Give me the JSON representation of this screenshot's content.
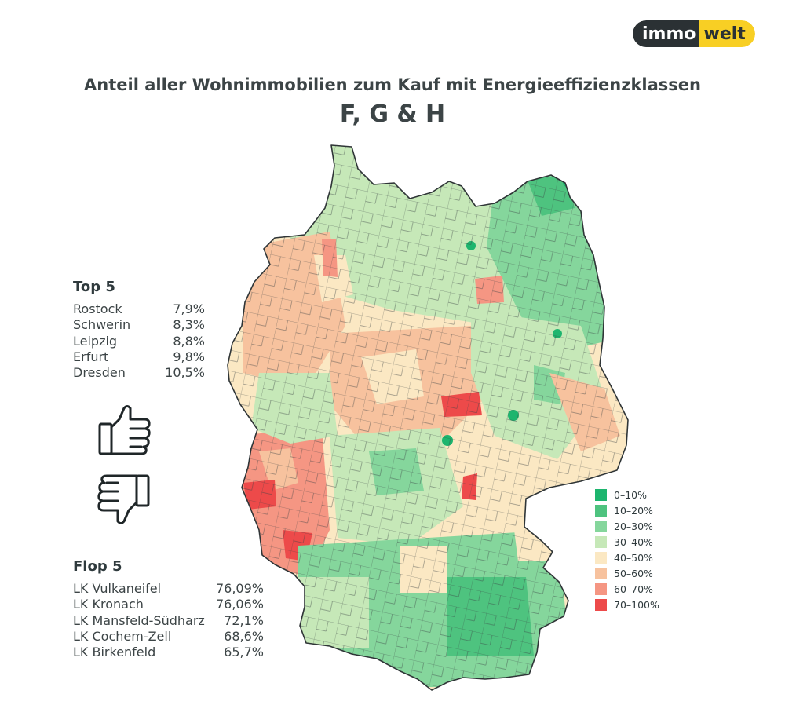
{
  "brand": {
    "part1": "immo",
    "part2": "welt"
  },
  "title": "Anteil aller Wohnimmobilien zum Kauf mit Energieeffizienzklassen",
  "subtitle": "F, G & H",
  "top5": {
    "heading": "Top 5",
    "rows": [
      {
        "name": "Rostock",
        "value": "7,9%"
      },
      {
        "name": "Schwerin",
        "value": "8,3%"
      },
      {
        "name": "Leipzig",
        "value": "8,8%"
      },
      {
        "name": "Erfurt",
        "value": "9,8%"
      },
      {
        "name": "Dresden",
        "value": "10,5%"
      }
    ]
  },
  "flop5": {
    "heading": "Flop 5",
    "rows": [
      {
        "name": "LK Vulkaneifel",
        "value": "76,09%"
      },
      {
        "name": "LK Kronach",
        "value": "76,06%"
      },
      {
        "name": "LK Mansfeld-Südharz",
        "value": "72,1%"
      },
      {
        "name": "LK Cochem-Zell",
        "value": "68,6%"
      },
      {
        "name": "LK Birkenfeld",
        "value": "65,7%"
      }
    ]
  },
  "legend": [
    {
      "label": "0–10%",
      "color": "#1db56e"
    },
    {
      "label": "10–20%",
      "color": "#4ec37f"
    },
    {
      "label": "20–30%",
      "color": "#85d69c"
    },
    {
      "label": "30–40%",
      "color": "#c6e8b8"
    },
    {
      "label": "40–50%",
      "color": "#fbe8c3"
    },
    {
      "label": "50–60%",
      "color": "#f7c29e"
    },
    {
      "label": "60–70%",
      "color": "#f59683"
    },
    {
      "label": "70–100%",
      "color": "#ed4a4a"
    }
  ],
  "icons": {
    "top": "thumbs-up-icon",
    "flop": "thumbs-down-icon"
  }
}
